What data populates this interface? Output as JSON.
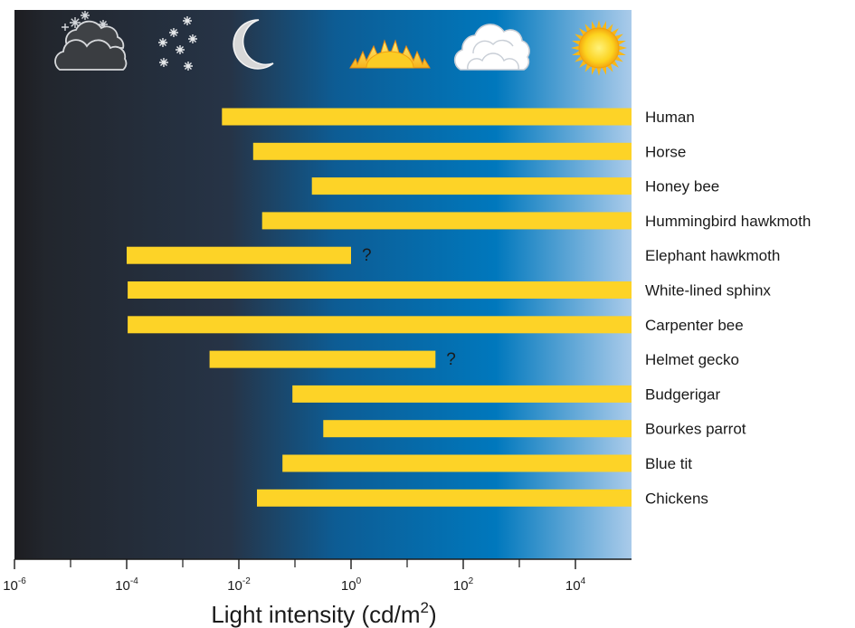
{
  "chart_data": {
    "type": "bar",
    "orientation": "horizontal",
    "xscale": "log",
    "xlim": [
      1e-06,
      100000
    ],
    "xticks_major": [
      1e-06,
      0.0001,
      0.01,
      1,
      100,
      10000
    ],
    "xticks_minor": [
      1e-05,
      0.001,
      0.1,
      10,
      1000
    ],
    "tick_labels": [
      {
        "base": "10",
        "exp": "-6"
      },
      {
        "base": "10",
        "exp": "-4"
      },
      {
        "base": "10",
        "exp": "-2"
      },
      {
        "base": "10",
        "exp": "0"
      },
      {
        "base": "10",
        "exp": "2"
      },
      {
        "base": "10",
        "exp": "4"
      }
    ],
    "xlabel": {
      "main": "Light intensity (cd/m",
      "sup": "2",
      "end": ")"
    },
    "bar_color": "#fdd327",
    "background_gradient": [
      "#1e1e22",
      "#243040",
      "#0b5c95",
      "#0076bb",
      "#a9cbe9"
    ],
    "sky_icons": [
      "starry-cloudy-night-icon",
      "starry-night-icon",
      "moonlight-icon",
      "sunrise-icon",
      "cloudy-day-icon",
      "sunny-day-icon"
    ],
    "categories": [
      "Human",
      "Horse",
      "Honey bee",
      "Hummingbird hawkmoth",
      "Elephant hawkmoth",
      "White-lined sphinx",
      "Carpenter bee",
      "Helmet gecko",
      "Budgerigar",
      "Bourkes parrot",
      "Blue tit",
      "Chickens"
    ],
    "ranges": [
      {
        "min": 0.005,
        "max": 100000
      },
      {
        "min": 0.018,
        "max": 100000
      },
      {
        "min": 0.2,
        "max": 100000
      },
      {
        "min": 0.026,
        "max": 100000
      },
      {
        "min": 0.0001,
        "max": 1,
        "uncertain": true,
        "mark": "?"
      },
      {
        "min": 0.000104,
        "max": 100000
      },
      {
        "min": 0.000104,
        "max": 100000
      },
      {
        "min": 0.003,
        "max": 32,
        "uncertain": true,
        "mark": "?"
      },
      {
        "min": 0.09,
        "max": 100000
      },
      {
        "min": 0.32,
        "max": 100000
      },
      {
        "min": 0.06,
        "max": 100000
      },
      {
        "min": 0.021,
        "max": 100000
      }
    ]
  }
}
